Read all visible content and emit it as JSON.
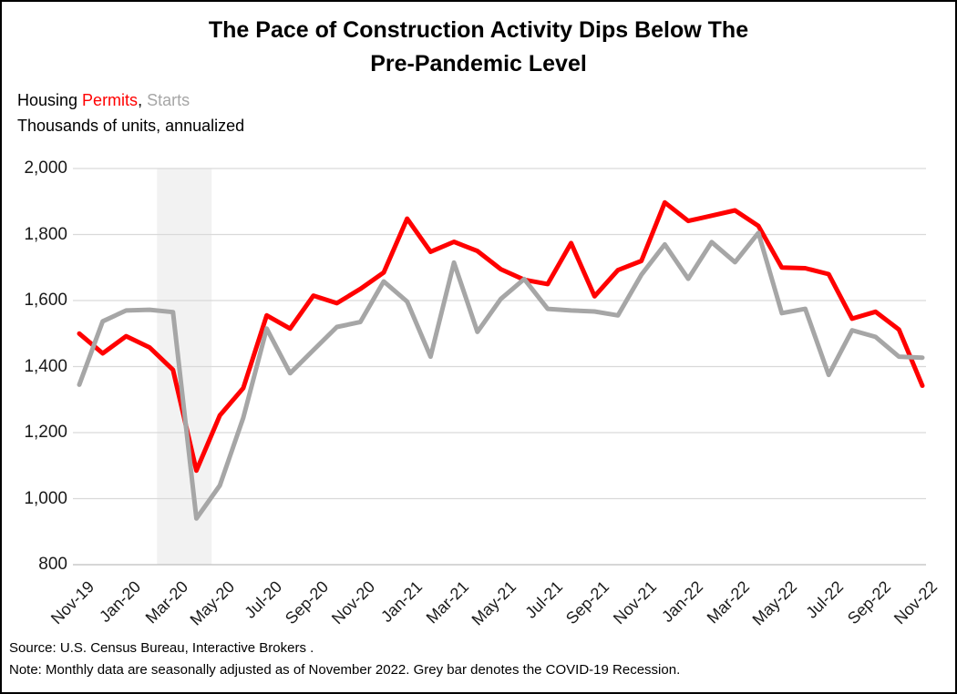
{
  "title": {
    "line1": "The Pace of Construction Activity Dips Below The",
    "line2": "Pre-Pandemic Level"
  },
  "subtitle": {
    "prefix": "Housing ",
    "permits_label": "Permits",
    "comma": ", ",
    "starts_label": "Starts",
    "units_line": "Thousands of units, annualized"
  },
  "footer": {
    "source_line": "Source: U.S. Census Bureau, Interactive Brokers .",
    "note_line": "Note: Monthly data are seasonally adjusted as of November 2022. Grey bar denotes the COVID-19 Recession."
  },
  "colors": {
    "permits_red": "#FF0000",
    "starts_grey": "#A6A6A6",
    "gridline": "#D9D9D9",
    "axis_line": "#C8C8C8",
    "recession_band": "#F2F2F2",
    "text_black": "#000000",
    "border": "#000000"
  },
  "chart_data": {
    "type": "line",
    "title": "The Pace of Construction Activity Dips Below The Pre-Pandemic Level",
    "xlabel": "",
    "ylabel": "Thousands of units, annualized",
    "ylim": [
      800,
      2000
    ],
    "grid": true,
    "legend_position": "top-left-inline",
    "y_ticks": [
      2000,
      1800,
      1600,
      1400,
      1200,
      1000,
      800
    ],
    "y_tick_labels": [
      "2,000",
      "1,800",
      "1,600",
      "1,400",
      "1,200",
      "1,000",
      "800"
    ],
    "x": [
      "Nov-19",
      "Dec-19",
      "Jan-20",
      "Feb-20",
      "Mar-20",
      "Apr-20",
      "May-20",
      "Jun-20",
      "Jul-20",
      "Aug-20",
      "Sep-20",
      "Oct-20",
      "Nov-20",
      "Dec-20",
      "Jan-21",
      "Feb-21",
      "Mar-21",
      "Apr-21",
      "May-21",
      "Jun-21",
      "Jul-21",
      "Aug-21",
      "Sep-21",
      "Oct-21",
      "Nov-21",
      "Dec-21",
      "Jan-22",
      "Feb-22",
      "Mar-22",
      "Apr-22",
      "May-22",
      "Jun-22",
      "Jul-22",
      "Aug-22",
      "Sep-22",
      "Oct-22",
      "Nov-22"
    ],
    "x_tick_labels": [
      "Nov-19",
      "Jan-20",
      "Mar-20",
      "May-20",
      "Jul-20",
      "Sep-20",
      "Nov-20",
      "Jan-21",
      "Mar-21",
      "May-21",
      "Jul-21",
      "Sep-21",
      "Nov-21",
      "Jan-22",
      "Mar-22",
      "May-22",
      "Jul-22",
      "Sep-22",
      "Nov-22"
    ],
    "series": [
      {
        "name": "Permits",
        "color": "#FF0000",
        "values": [
          1500,
          1440,
          1492,
          1458,
          1390,
          1085,
          1252,
          1335,
          1555,
          1515,
          1615,
          1592,
          1635,
          1685,
          1848,
          1748,
          1778,
          1750,
          1695,
          1663,
          1650,
          1774,
          1613,
          1692,
          1720,
          1897,
          1841,
          1857,
          1873,
          1826,
          1700,
          1698,
          1680,
          1545,
          1566,
          1512,
          1342
        ]
      },
      {
        "name": "Starts",
        "color": "#A6A6A6",
        "values": [
          1345,
          1537,
          1570,
          1572,
          1565,
          940,
          1040,
          1245,
          1515,
          1380,
          1450,
          1520,
          1535,
          1658,
          1597,
          1430,
          1715,
          1505,
          1605,
          1665,
          1575,
          1570,
          1567,
          1555,
          1678,
          1770,
          1666,
          1777,
          1716,
          1805,
          1562,
          1575,
          1375,
          1510,
          1490,
          1430,
          1427
        ]
      }
    ],
    "recession_band": {
      "from": "Mar-20",
      "to": "Apr-20",
      "label": "COVID-19 Recession",
      "color": "#F2F2F2"
    }
  }
}
